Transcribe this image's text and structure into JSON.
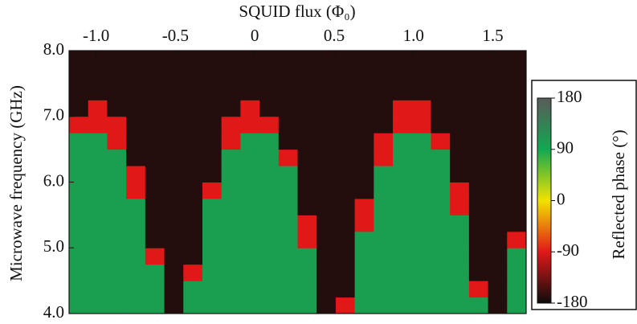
{
  "chart_data": {
    "type": "heatmap",
    "title": "SQUID flux (Φ₀)",
    "ylabel": "Microwave frequency (GHz)",
    "colorbar_label": "Reflected phase (°)",
    "x": [
      -1.11,
      -0.99,
      -0.87,
      -0.75,
      -0.63,
      -0.51,
      -0.39,
      -0.27,
      -0.15,
      -0.03,
      0.09,
      0.21,
      0.33,
      0.45,
      0.57,
      0.69,
      0.81,
      0.93,
      1.05,
      1.17,
      1.29,
      1.41,
      1.53,
      1.65
    ],
    "y": [
      4.125,
      4.375,
      4.625,
      4.875,
      5.125,
      5.375,
      5.625,
      5.875,
      6.125,
      6.375,
      6.625,
      6.875,
      7.125,
      7.375,
      7.625,
      7.875
    ],
    "z": [
      [
        100,
        100,
        100,
        100,
        100,
        -170,
        100,
        100,
        100,
        100,
        100,
        100,
        100,
        -170,
        -90,
        100,
        100,
        100,
        100,
        100,
        100,
        100,
        -170,
        100
      ],
      [
        100,
        100,
        100,
        100,
        100,
        -170,
        100,
        100,
        100,
        100,
        100,
        100,
        100,
        -170,
        -170,
        100,
        100,
        100,
        100,
        100,
        100,
        -90,
        -170,
        100
      ],
      [
        100,
        100,
        100,
        100,
        100,
        -170,
        -90,
        100,
        100,
        100,
        100,
        100,
        100,
        -170,
        -170,
        100,
        100,
        100,
        100,
        100,
        100,
        -170,
        -170,
        100
      ],
      [
        100,
        100,
        100,
        100,
        -90,
        -170,
        -170,
        100,
        100,
        100,
        100,
        100,
        100,
        -170,
        -170,
        100,
        100,
        100,
        100,
        100,
        100,
        -170,
        -170,
        100
      ],
      [
        100,
        100,
        100,
        100,
        -170,
        -170,
        -170,
        100,
        100,
        100,
        100,
        100,
        -90,
        -170,
        -170,
        100,
        100,
        100,
        100,
        100,
        100,
        -170,
        -170,
        -90
      ],
      [
        100,
        100,
        100,
        100,
        -170,
        -170,
        -170,
        100,
        100,
        100,
        100,
        100,
        -90,
        -170,
        -170,
        -90,
        100,
        100,
        100,
        100,
        100,
        -170,
        -170,
        -170
      ],
      [
        100,
        100,
        100,
        100,
        -170,
        -170,
        -170,
        100,
        100,
        100,
        100,
        100,
        -170,
        -170,
        -170,
        -90,
        100,
        100,
        100,
        100,
        -90,
        -170,
        -170,
        -170
      ],
      [
        100,
        100,
        100,
        -90,
        -170,
        -170,
        -170,
        -90,
        100,
        100,
        100,
        100,
        -170,
        -170,
        -170,
        -170,
        100,
        100,
        100,
        100,
        -90,
        -170,
        -170,
        -170
      ],
      [
        100,
        100,
        100,
        -90,
        -170,
        -170,
        -170,
        -170,
        100,
        100,
        100,
        100,
        -170,
        -170,
        -170,
        -170,
        100,
        100,
        100,
        100,
        -170,
        -170,
        -170,
        -170
      ],
      [
        100,
        100,
        100,
        -170,
        -170,
        -170,
        -170,
        -170,
        100,
        100,
        100,
        -90,
        -170,
        -170,
        -170,
        -170,
        -90,
        100,
        100,
        100,
        -170,
        -170,
        -170,
        -170
      ],
      [
        100,
        100,
        -90,
        -170,
        -170,
        -170,
        -170,
        -170,
        -90,
        100,
        100,
        -170,
        -170,
        -170,
        -170,
        -170,
        -90,
        100,
        100,
        -90,
        -170,
        -170,
        -170,
        -170
      ],
      [
        -90,
        -90,
        -90,
        -170,
        -170,
        -170,
        -170,
        -170,
        -90,
        -90,
        -90,
        -170,
        -170,
        -170,
        -170,
        -170,
        -170,
        -90,
        -90,
        -170,
        -170,
        -170,
        -170,
        -170
      ],
      [
        -170,
        -90,
        -170,
        -170,
        -170,
        -170,
        -170,
        -170,
        -170,
        -90,
        -170,
        -170,
        -170,
        -170,
        -170,
        -170,
        -170,
        -90,
        -90,
        -170,
        -170,
        -170,
        -170,
        -170
      ],
      [
        -170,
        -170,
        -170,
        -170,
        -170,
        -170,
        -170,
        -170,
        -170,
        -170,
        -170,
        -170,
        -170,
        -170,
        -170,
        -170,
        -170,
        -170,
        -170,
        -170,
        -170,
        -170,
        -170,
        -170
      ],
      [
        -170,
        -170,
        -170,
        -170,
        -170,
        -170,
        -170,
        -170,
        -170,
        -170,
        -170,
        -170,
        -170,
        -170,
        -170,
        -170,
        -170,
        -170,
        -170,
        -170,
        -170,
        -170,
        -170,
        -170
      ],
      [
        -170,
        -170,
        -170,
        -170,
        -170,
        -170,
        -170,
        -170,
        -170,
        -170,
        -170,
        -170,
        -170,
        -170,
        -170,
        -170,
        -170,
        -170,
        -170,
        -170,
        -170,
        -170,
        -170,
        -170
      ]
    ],
    "xlim": [
      -1.17,
      1.71
    ],
    "xticks": [
      {
        "value": -1,
        "label": "-1.0"
      },
      -0.5,
      0,
      0.5,
      {
        "value": 1,
        "label": "1.0"
      },
      1.5
    ],
    "ylim": [
      4,
      8
    ],
    "yticks": [
      {
        "value": 4,
        "label": "4.0"
      },
      {
        "value": 5,
        "label": "5.0"
      },
      {
        "value": 6,
        "label": "6.0"
      },
      {
        "value": 7,
        "label": "7.0"
      },
      {
        "value": 8,
        "label": "8.0"
      }
    ],
    "zlim": [
      -180,
      180
    ],
    "zticks": [
      180,
      90,
      0,
      -90,
      -180
    ],
    "colorscale": [
      "#0c0c0c",
      "#e01818",
      "#f2e200",
      "#12a850",
      "#5a5a5a"
    ]
  }
}
